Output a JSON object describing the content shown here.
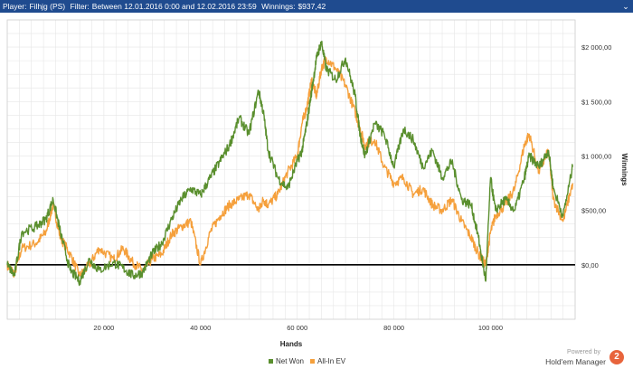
{
  "header": {
    "player_label": "Player:",
    "player_value": "Filhjg (PS)",
    "filter_label": "Filter:",
    "filter_value": "Between 12.01.2016 0:00 and 12.02.2016 23:59",
    "winnings_label": "Winnings:",
    "winnings_value": "$937,42",
    "collapse_icon": "chevron-down-icon"
  },
  "chart_data": {
    "type": "line",
    "xlabel": "Hands",
    "ylabel": "Winnings",
    "xlim": [
      0,
      117500
    ],
    "ylim": [
      -500,
      2250
    ],
    "x_ticks": [
      20000,
      40000,
      60000,
      80000,
      100000
    ],
    "x_tick_labels": [
      "20 000",
      "40 000",
      "60 000",
      "80 000",
      "100 000"
    ],
    "y_ticks": [
      0,
      500,
      1000,
      1500,
      2000
    ],
    "y_tick_labels": [
      "$0,00",
      "$500,00",
      "$1 000,00",
      "$1 500,00",
      "$2 000,00"
    ],
    "grid": true,
    "legend_position": "bottom",
    "x": [
      0,
      1500,
      3000,
      6000,
      8000,
      9500,
      11000,
      13000,
      15000,
      17000,
      19000,
      22000,
      24000,
      26000,
      28000,
      30000,
      32000,
      34000,
      36000,
      38000,
      40000,
      42000,
      44000,
      46000,
      48000,
      50000,
      52000,
      53000,
      54000,
      56000,
      58000,
      60000,
      61000,
      62000,
      63000,
      64000,
      65000,
      66000,
      68000,
      70000,
      72000,
      73000,
      74000,
      76000,
      78000,
      80000,
      82000,
      84000,
      86000,
      88000,
      90000,
      92000,
      94000,
      96000,
      97500,
      99000,
      100000,
      101000,
      103000,
      105000,
      107000,
      108000,
      110000,
      112000,
      113000,
      115000,
      117000
    ],
    "series": [
      {
        "name": "Net Won",
        "color": "#5a8f2e",
        "values": [
          0,
          -100,
          300,
          350,
          420,
          600,
          300,
          -50,
          -150,
          50,
          -50,
          20,
          -30,
          -100,
          -70,
          100,
          200,
          420,
          600,
          700,
          640,
          800,
          950,
          1100,
          1350,
          1200,
          1600,
          1400,
          1050,
          800,
          700,
          950,
          1050,
          1300,
          1600,
          1900,
          2050,
          1800,
          1700,
          1900,
          1550,
          1200,
          1000,
          1300,
          1200,
          900,
          1250,
          1150,
          900,
          1050,
          800,
          950,
          600,
          550,
          250,
          -150,
          800,
          500,
          600,
          500,
          800,
          1000,
          900,
          1050,
          700,
          450,
          900
        ]
      },
      {
        "name": "All-In EV",
        "color": "#f5a03c",
        "values": [
          0,
          -80,
          150,
          200,
          300,
          550,
          250,
          100,
          -100,
          0,
          150,
          50,
          150,
          20,
          -50,
          50,
          100,
          280,
          350,
          400,
          0,
          300,
          450,
          550,
          600,
          650,
          500,
          600,
          550,
          650,
          850,
          1000,
          1300,
          1450,
          1700,
          1550,
          1800,
          1900,
          1800,
          1650,
          1400,
          1250,
          1100,
          1150,
          900,
          750,
          800,
          650,
          700,
          550,
          500,
          600,
          400,
          250,
          100,
          0,
          300,
          450,
          550,
          700,
          1100,
          1200,
          850,
          1050,
          600,
          400,
          750
        ]
      }
    ]
  }
}
